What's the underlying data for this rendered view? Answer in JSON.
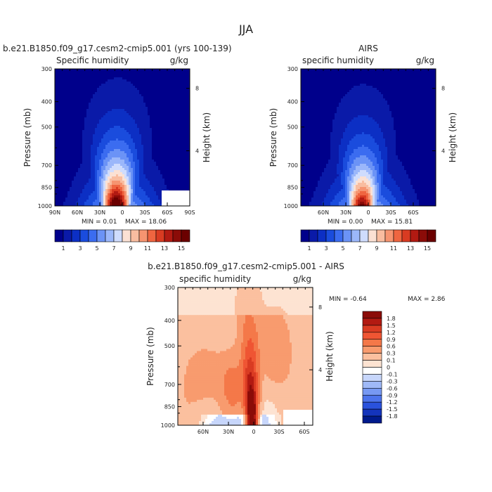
{
  "figure_title": "JJA",
  "chart_data": [
    {
      "id": "model",
      "type": "contour",
      "title": "b.e21.B1850.f09_g17.cesm2-cmip5.001 (yrs 100-139)",
      "left_label": "Specific humidity",
      "right_label": "g/kg",
      "ylabel": "Pressure (mb)",
      "ylabel_right": "Height (km)",
      "x_ticks": [
        "90N",
        "60N",
        "30N",
        "0",
        "30S",
        "60S",
        "90S"
      ],
      "y_ticks": [
        "300",
        "400",
        "500",
        "700",
        "850",
        "1000"
      ],
      "y_ticks_right": [
        "8",
        "4"
      ],
      "min_label": "MIN =   0.01",
      "max_label": "MAX =   18.06",
      "min": 0.01,
      "max": 18.06,
      "levels": [
        1,
        2,
        3,
        4,
        5,
        6,
        7,
        8,
        9,
        10,
        11,
        12,
        13,
        14,
        15
      ],
      "colorbar_labels": [
        "1",
        "3",
        "5",
        "7",
        "9",
        "11",
        "13",
        "15"
      ],
      "peak_lat": 8,
      "peak_value": 18.06
    },
    {
      "id": "obs",
      "type": "contour",
      "title": "AIRS",
      "left_label": "specific humidity",
      "right_label": "g/kg",
      "ylabel": "Pressure (mb)",
      "ylabel_right": "Height (km)",
      "x_ticks": [
        "60N",
        "30N",
        "0",
        "30S",
        "60S"
      ],
      "y_ticks": [
        "300",
        "400",
        "500",
        "700",
        "850",
        "1000"
      ],
      "y_ticks_right": [
        "8",
        "4"
      ],
      "min_label": "MIN =   0.00",
      "max_label": "MAX =   15.81",
      "min": 0.0,
      "max": 15.81,
      "levels": [
        1,
        2,
        3,
        4,
        5,
        6,
        7,
        8,
        9,
        10,
        11,
        12,
        13,
        14,
        15
      ],
      "colorbar_labels": [
        "1",
        "3",
        "5",
        "7",
        "9",
        "11",
        "13",
        "15"
      ],
      "peak_lat": 8,
      "peak_value": 15.81
    },
    {
      "id": "diff",
      "type": "contour",
      "title": "b.e21.B1850.f09_g17.cesm2-cmip5.001 - AIRS",
      "left_label": "specific humidity",
      "right_label": "g/kg",
      "ylabel": "Pressure (mb)",
      "ylabel_right": "Height (km)",
      "x_ticks": [
        "60N",
        "30N",
        "0",
        "30S",
        "60S"
      ],
      "y_ticks": [
        "300",
        "400",
        "500",
        "700",
        "850",
        "1000"
      ],
      "y_ticks_right": [
        "8",
        "4"
      ],
      "min_label": "MIN =   -0.64",
      "max_label": "MAX =   2.86",
      "min": -0.64,
      "max": 2.86,
      "levels": [
        1.8,
        1.5,
        1.2,
        0.9,
        0.6,
        0.3,
        0.1,
        0,
        -0.1,
        -0.3,
        -0.6,
        -0.9,
        -1.2,
        -1.5,
        -1.8
      ],
      "colorbar_labels": [
        "1.8",
        "1.5",
        "1.2",
        "0.9",
        "0.6",
        "0.3",
        "0.1",
        "0",
        "-0.1",
        "-0.3",
        "-0.6",
        "-0.9",
        "-1.2",
        "-1.5",
        "-1.8"
      ],
      "peak_lat": 2,
      "peak_value": 2.86
    }
  ],
  "colors": {
    "sequential": [
      "#00008b",
      "#0a1aa8",
      "#0c2fc4",
      "#1a4cdd",
      "#3b6cf0",
      "#6b93f6",
      "#9bb7fa",
      "#cfdcfd",
      "#fbe1d4",
      "#f9bda0",
      "#f69470",
      "#ef6540",
      "#d93b22",
      "#b21a12",
      "#8b0c08",
      "#6b0000"
    ],
    "diverging": [
      "#8b0c08",
      "#b21a12",
      "#d93b22",
      "#ef5533",
      "#f47849",
      "#f89b6e",
      "#fbc09f",
      "#fde3d2",
      "#ffffff",
      "#c7d6fb",
      "#9fb9f8",
      "#7799f3",
      "#4d74ec",
      "#2a52dc",
      "#1434bc",
      "#001a8c"
    ]
  }
}
